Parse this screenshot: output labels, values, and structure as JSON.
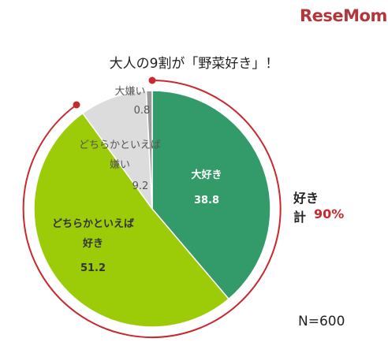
{
  "chart_data": {
    "type": "pie",
    "title": "大人の9割が「野菜好き」！",
    "categories": [
      "大好き",
      "どちらかといえば好き",
      "どちらかといえば嫌い",
      "大嫌い"
    ],
    "values": [
      38.8,
      51.2,
      9.2,
      0.8
    ],
    "colors": [
      "#339a69",
      "#9ccb08",
      "#dcdcdc",
      "#9a9a9a"
    ],
    "annotations": {
      "sum_label": "好き",
      "sum_prefix": "計",
      "sum_value": "90%",
      "n": "N=600"
    },
    "logo": "ReseMom"
  }
}
